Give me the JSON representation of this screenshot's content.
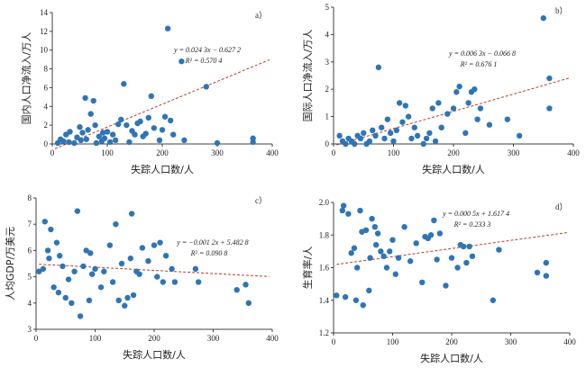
{
  "colors": {
    "point": "#2e75b6",
    "trend": "#c0392b",
    "axis": "#404040"
  },
  "chart_data": [
    {
      "type": "scatter",
      "panel_label": "a）",
      "xlabel": "失踪人口数/人",
      "ylabel": "国内人口净流入/万人",
      "xlim": [
        0,
        400
      ],
      "ylim": [
        0,
        14
      ],
      "x_ticks": [
        "0",
        "100",
        "200",
        "300",
        "400"
      ],
      "y_ticks": [
        "0",
        "2",
        "4",
        "6",
        "8",
        "10",
        "12",
        "14"
      ],
      "equation": "y = 0.024 3x − 0.627 2",
      "r2": "R² = 0.570 4",
      "trendline": {
        "slope": 0.0243,
        "intercept": -0.6272
      },
      "points": [
        [
          10,
          0.1
        ],
        [
          15,
          0.5
        ],
        [
          20,
          0.3
        ],
        [
          25,
          1.0
        ],
        [
          30,
          0.2
        ],
        [
          32,
          1.3
        ],
        [
          40,
          0.1
        ],
        [
          45,
          0.7
        ],
        [
          50,
          1.8
        ],
        [
          52,
          0.4
        ],
        [
          55,
          1.2
        ],
        [
          60,
          4.9
        ],
        [
          62,
          0.5
        ],
        [
          65,
          1.5
        ],
        [
          70,
          3.2
        ],
        [
          75,
          4.6
        ],
        [
          78,
          2.0
        ],
        [
          80,
          0.1
        ],
        [
          85,
          0.8
        ],
        [
          90,
          0.3
        ],
        [
          92,
          1.2
        ],
        [
          95,
          0.6
        ],
        [
          100,
          1.3
        ],
        [
          105,
          0.2
        ],
        [
          110,
          1.0
        ],
        [
          115,
          0.4
        ],
        [
          120,
          2.1
        ],
        [
          125,
          2.6
        ],
        [
          130,
          6.4
        ],
        [
          135,
          2.0
        ],
        [
          140,
          0.2
        ],
        [
          145,
          1.4
        ],
        [
          150,
          1.0
        ],
        [
          155,
          2.2
        ],
        [
          160,
          2.4
        ],
        [
          165,
          0.8
        ],
        [
          170,
          1.1
        ],
        [
          175,
          2.8
        ],
        [
          180,
          5.1
        ],
        [
          185,
          1.7
        ],
        [
          195,
          0.4
        ],
        [
          200,
          1.5
        ],
        [
          205,
          2.9
        ],
        [
          210,
          12.3
        ],
        [
          215,
          2.5
        ],
        [
          220,
          1.0
        ],
        [
          235,
          8.8
        ],
        [
          240,
          0.4
        ],
        [
          280,
          6.1
        ],
        [
          300,
          0.1
        ],
        [
          365,
          0.6
        ],
        [
          365,
          0.2
        ]
      ]
    },
    {
      "type": "scatter",
      "panel_label": "b）",
      "xlabel": "失踪人口数/人",
      "ylabel": "国际人口净流入/万人",
      "xlim": [
        0,
        400
      ],
      "ylim": [
        0,
        5
      ],
      "x_ticks": [
        "0",
        "100",
        "200",
        "300",
        "400"
      ],
      "y_ticks": [
        "0",
        "1",
        "2",
        "3",
        "4",
        "5"
      ],
      "equation": "y = 0.006 3x − 0.066 8",
      "r2": "R² = 0.676 1",
      "trendline": {
        "slope": 0.0063,
        "intercept": -0.0668
      },
      "points": [
        [
          10,
          0.3
        ],
        [
          15,
          0.1
        ],
        [
          20,
          0.0
        ],
        [
          25,
          0.2
        ],
        [
          30,
          0.1
        ],
        [
          35,
          0.0
        ],
        [
          40,
          0.3
        ],
        [
          45,
          0.2
        ],
        [
          50,
          0.4
        ],
        [
          55,
          0.0
        ],
        [
          60,
          0.1
        ],
        [
          65,
          0.5
        ],
        [
          70,
          0.3
        ],
        [
          75,
          2.8
        ],
        [
          80,
          0.6
        ],
        [
          85,
          0.2
        ],
        [
          90,
          0.9
        ],
        [
          95,
          0.4
        ],
        [
          100,
          0.1
        ],
        [
          105,
          0.5
        ],
        [
          110,
          1.5
        ],
        [
          115,
          0.8
        ],
        [
          120,
          1.4
        ],
        [
          125,
          1.0
        ],
        [
          130,
          0.2
        ],
        [
          135,
          0.6
        ],
        [
          140,
          0.3
        ],
        [
          150,
          0.0
        ],
        [
          155,
          0.2
        ],
        [
          160,
          0.4
        ],
        [
          165,
          1.3
        ],
        [
          170,
          0.1
        ],
        [
          175,
          1.5
        ],
        [
          180,
          0.6
        ],
        [
          190,
          1.1
        ],
        [
          200,
          1.3
        ],
        [
          205,
          1.9
        ],
        [
          210,
          2.1
        ],
        [
          220,
          0.4
        ],
        [
          225,
          1.5
        ],
        [
          230,
          1.9
        ],
        [
          235,
          2.0
        ],
        [
          240,
          0.9
        ],
        [
          245,
          1.3
        ],
        [
          260,
          0.7
        ],
        [
          290,
          0.9
        ],
        [
          310,
          0.3
        ],
        [
          350,
          4.6
        ],
        [
          360,
          2.4
        ],
        [
          360,
          1.3
        ]
      ]
    },
    {
      "type": "scatter",
      "panel_label": "c）",
      "xlabel": "失踪人口数/人",
      "ylabel": "人均GDP/万美元",
      "xlim": [
        0,
        400
      ],
      "ylim": [
        3,
        8
      ],
      "x_ticks": [
        "0",
        "100",
        "200",
        "300",
        "400"
      ],
      "y_ticks": [
        "3",
        "4",
        "5",
        "6",
        "7",
        "8"
      ],
      "equation": "y = −0.001 2x + 5.482 8",
      "r2": "R² = 0.090 8",
      "trendline": {
        "slope": -0.0012,
        "intercept": 5.4828
      },
      "points": [
        [
          5,
          5.2
        ],
        [
          12,
          5.3
        ],
        [
          15,
          7.1
        ],
        [
          20,
          6.0
        ],
        [
          22,
          5.7
        ],
        [
          25,
          6.8
        ],
        [
          30,
          4.6
        ],
        [
          35,
          6.3
        ],
        [
          38,
          4.4
        ],
        [
          40,
          5.8
        ],
        [
          45,
          5.4
        ],
        [
          50,
          4.2
        ],
        [
          55,
          4.9
        ],
        [
          60,
          4.0
        ],
        [
          65,
          5.2
        ],
        [
          70,
          7.5
        ],
        [
          75,
          3.5
        ],
        [
          80,
          5.4
        ],
        [
          85,
          6.0
        ],
        [
          90,
          4.1
        ],
        [
          92,
          5.9
        ],
        [
          95,
          5.1
        ],
        [
          100,
          5.3
        ],
        [
          110,
          4.6
        ],
        [
          115,
          5.2
        ],
        [
          125,
          6.2
        ],
        [
          130,
          4.8
        ],
        [
          135,
          7.0
        ],
        [
          140,
          4.1
        ],
        [
          145,
          5.5
        ],
        [
          150,
          3.9
        ],
        [
          155,
          4.2
        ],
        [
          160,
          5.7
        ],
        [
          162,
          7.4
        ],
        [
          165,
          4.3
        ],
        [
          170,
          5.2
        ],
        [
          175,
          5.1
        ],
        [
          180,
          6.1
        ],
        [
          190,
          5.6
        ],
        [
          200,
          6.2
        ],
        [
          205,
          5.0
        ],
        [
          210,
          6.3
        ],
        [
          215,
          4.8
        ],
        [
          220,
          5.8
        ],
        [
          230,
          5.3
        ],
        [
          235,
          4.8
        ],
        [
          270,
          5.3
        ],
        [
          275,
          4.8
        ],
        [
          340,
          4.5
        ],
        [
          355,
          4.7
        ],
        [
          360,
          4.0
        ]
      ]
    },
    {
      "type": "scatter",
      "panel_label": "d）",
      "xlabel": "失踪人口数/人",
      "ylabel": "生育率/人",
      "xlim": [
        0,
        400
      ],
      "ylim": [
        1.2,
        2.0
      ],
      "x_ticks": [
        "0",
        "100",
        "200",
        "300",
        "400"
      ],
      "y_ticks": [
        "1.2",
        "1.4",
        "1.6",
        "1.8",
        "2.0"
      ],
      "equation": "y = 0.000 5x + 1.617 4",
      "r2": "R² = 0.233 3",
      "trendline": {
        "slope": 0.0005,
        "intercept": 1.6174
      },
      "points": [
        [
          5,
          1.43
        ],
        [
          15,
          1.95
        ],
        [
          17,
          1.98
        ],
        [
          20,
          1.42
        ],
        [
          25,
          1.93
        ],
        [
          30,
          1.69
        ],
        [
          35,
          1.72
        ],
        [
          38,
          1.4
        ],
        [
          40,
          1.6
        ],
        [
          45,
          1.95
        ],
        [
          48,
          1.82
        ],
        [
          50,
          1.37
        ],
        [
          55,
          1.83
        ],
        [
          60,
          1.46
        ],
        [
          62,
          1.66
        ],
        [
          65,
          1.9
        ],
        [
          70,
          1.85
        ],
        [
          72,
          1.74
        ],
        [
          75,
          1.81
        ],
        [
          80,
          1.7
        ],
        [
          85,
          1.67
        ],
        [
          90,
          1.6
        ],
        [
          95,
          1.7
        ],
        [
          100,
          1.77
        ],
        [
          105,
          1.56
        ],
        [
          110,
          1.66
        ],
        [
          120,
          1.85
        ],
        [
          130,
          1.64
        ],
        [
          140,
          1.75
        ],
        [
          150,
          1.51
        ],
        [
          155,
          1.79
        ],
        [
          160,
          1.78
        ],
        [
          165,
          1.8
        ],
        [
          170,
          1.89
        ],
        [
          175,
          1.65
        ],
        [
          180,
          1.81
        ],
        [
          190,
          1.49
        ],
        [
          200,
          1.66
        ],
        [
          210,
          1.6
        ],
        [
          215,
          1.74
        ],
        [
          220,
          1.73
        ],
        [
          225,
          1.63
        ],
        [
          230,
          1.73
        ],
        [
          235,
          1.67
        ],
        [
          270,
          1.4
        ],
        [
          280,
          1.71
        ],
        [
          345,
          1.57
        ],
        [
          360,
          1.63
        ],
        [
          360,
          1.55
        ]
      ]
    }
  ]
}
